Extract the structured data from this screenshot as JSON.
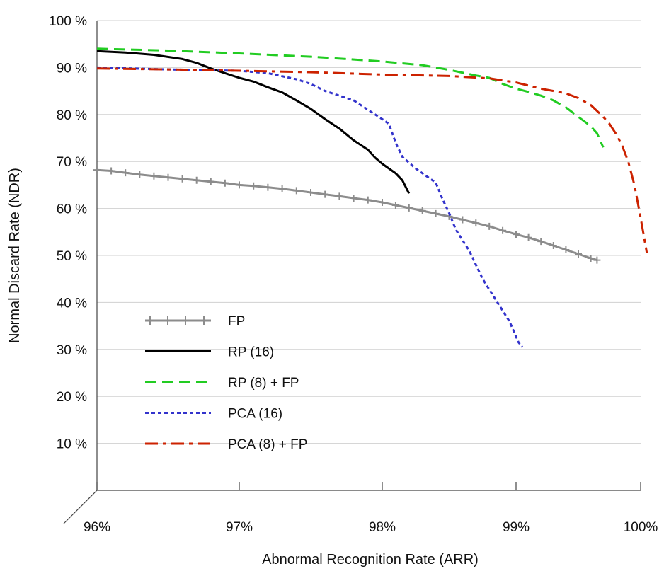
{
  "chart_data": {
    "type": "line",
    "xlabel": "Abnormal Recognition Rate (ARR)",
    "ylabel": "Normal Discard Rate (NDR)",
    "x_ticks": [
      {
        "value": 96,
        "label": "96%"
      },
      {
        "value": 97,
        "label": "97%"
      },
      {
        "value": 98,
        "label": "98%"
      },
      {
        "value": 99,
        "label": "99%"
      },
      {
        "value": 100,
        "label": "100%"
      }
    ],
    "y_ticks": [
      {
        "value": 10,
        "label": "10 %"
      },
      {
        "value": 20,
        "label": "20 %"
      },
      {
        "value": 30,
        "label": "30 %"
      },
      {
        "value": 40,
        "label": "40 %"
      },
      {
        "value": 50,
        "label": "50 %"
      },
      {
        "value": 60,
        "label": "60 %"
      },
      {
        "value": 70,
        "label": "70 %"
      },
      {
        "value": 80,
        "label": "80 %"
      },
      {
        "value": 90,
        "label": "90 %"
      },
      {
        "value": 100,
        "label": "100 %"
      }
    ],
    "xlim": [
      96,
      100
    ],
    "ylim": [
      0,
      100
    ],
    "x_scale_note": "",
    "grid": "horizontal",
    "legend_position": "lower-left",
    "series": [
      {
        "name": "FP",
        "color": "#8c8c8c",
        "style": "solid-plus",
        "points": [
          [
            96.0,
            68.2
          ],
          [
            96.1,
            68.0
          ],
          [
            96.2,
            67.6
          ],
          [
            96.3,
            67.2
          ],
          [
            96.4,
            66.9
          ],
          [
            96.5,
            66.6
          ],
          [
            96.6,
            66.3
          ],
          [
            96.7,
            66.0
          ],
          [
            96.8,
            65.7
          ],
          [
            96.9,
            65.4
          ],
          [
            97.0,
            65.0
          ],
          [
            97.1,
            64.8
          ],
          [
            97.2,
            64.5
          ],
          [
            97.3,
            64.2
          ],
          [
            97.4,
            63.8
          ],
          [
            97.5,
            63.4
          ],
          [
            97.6,
            63.0
          ],
          [
            97.7,
            62.6
          ],
          [
            97.8,
            62.2
          ],
          [
            97.9,
            61.8
          ],
          [
            98.0,
            61.3
          ],
          [
            98.1,
            60.7
          ],
          [
            98.2,
            60.1
          ],
          [
            98.3,
            59.5
          ],
          [
            98.4,
            58.9
          ],
          [
            98.5,
            58.3
          ],
          [
            98.6,
            57.6
          ],
          [
            98.7,
            56.9
          ],
          [
            98.8,
            56.2
          ],
          [
            98.9,
            55.3
          ],
          [
            99.0,
            54.5
          ],
          [
            99.1,
            53.8
          ],
          [
            99.2,
            53.0
          ],
          [
            99.3,
            52.1
          ],
          [
            99.4,
            51.2
          ],
          [
            99.5,
            50.3
          ],
          [
            99.6,
            49.4
          ],
          [
            99.65,
            49.0
          ]
        ]
      },
      {
        "name": "RP (16)",
        "color": "#000000",
        "style": "solid",
        "points": [
          [
            96.0,
            93.5
          ],
          [
            96.2,
            93.2
          ],
          [
            96.4,
            92.7
          ],
          [
            96.6,
            91.8
          ],
          [
            96.7,
            91.0
          ],
          [
            96.8,
            89.8
          ],
          [
            96.9,
            88.8
          ],
          [
            97.0,
            87.8
          ],
          [
            97.1,
            87.0
          ],
          [
            97.2,
            85.8
          ],
          [
            97.3,
            84.7
          ],
          [
            97.4,
            83.0
          ],
          [
            97.5,
            81.2
          ],
          [
            97.6,
            79.0
          ],
          [
            97.7,
            77.0
          ],
          [
            97.8,
            74.5
          ],
          [
            97.9,
            72.5
          ],
          [
            97.95,
            70.8
          ],
          [
            98.0,
            69.5
          ],
          [
            98.1,
            67.5
          ],
          [
            98.15,
            66.0
          ],
          [
            98.2,
            63.2
          ]
        ]
      },
      {
        "name": "RP (8) + FP",
        "color": "#22cc22",
        "style": "dashed",
        "points": [
          [
            96.0,
            94.0
          ],
          [
            96.5,
            93.6
          ],
          [
            97.0,
            93.0
          ],
          [
            97.5,
            92.3
          ],
          [
            98.0,
            91.3
          ],
          [
            98.3,
            90.5
          ],
          [
            98.5,
            89.5
          ],
          [
            98.7,
            88.3
          ],
          [
            98.8,
            87.8
          ],
          [
            98.9,
            86.5
          ],
          [
            99.0,
            85.5
          ],
          [
            99.1,
            84.8
          ],
          [
            99.2,
            84.0
          ],
          [
            99.3,
            83.0
          ],
          [
            99.4,
            81.5
          ],
          [
            99.5,
            79.5
          ],
          [
            99.6,
            77.5
          ],
          [
            99.65,
            76.0
          ],
          [
            99.7,
            73.0
          ]
        ]
      },
      {
        "name": "PCA (16)",
        "color": "#3333cc",
        "style": "dotted",
        "points": [
          [
            96.0,
            90.0
          ],
          [
            96.5,
            89.6
          ],
          [
            97.0,
            89.3
          ],
          [
            97.2,
            88.8
          ],
          [
            97.4,
            87.5
          ],
          [
            97.5,
            86.5
          ],
          [
            97.6,
            85.0
          ],
          [
            97.7,
            84.0
          ],
          [
            97.8,
            83.0
          ],
          [
            97.9,
            81.0
          ],
          [
            98.0,
            79.0
          ],
          [
            98.05,
            78.0
          ],
          [
            98.1,
            74.0
          ],
          [
            98.15,
            71.0
          ],
          [
            98.25,
            68.5
          ],
          [
            98.4,
            65.5
          ],
          [
            98.45,
            62.0
          ],
          [
            98.5,
            59.0
          ],
          [
            98.55,
            55.5
          ],
          [
            98.65,
            51.0
          ],
          [
            98.75,
            45.0
          ],
          [
            98.85,
            40.5
          ],
          [
            98.95,
            36.0
          ],
          [
            99.02,
            31.5
          ],
          [
            99.05,
            30.5
          ]
        ]
      },
      {
        "name": "PCA (8) + FP",
        "color": "#cc2200",
        "style": "dashdot",
        "points": [
          [
            96.0,
            89.8
          ],
          [
            96.5,
            89.6
          ],
          [
            97.0,
            89.3
          ],
          [
            97.5,
            89.0
          ],
          [
            98.0,
            88.5
          ],
          [
            98.5,
            88.2
          ],
          [
            98.8,
            87.7
          ],
          [
            99.0,
            86.8
          ],
          [
            99.2,
            85.5
          ],
          [
            99.4,
            84.5
          ],
          [
            99.5,
            83.5
          ],
          [
            99.6,
            82.0
          ],
          [
            99.7,
            79.5
          ],
          [
            99.75,
            78.0
          ],
          [
            99.8,
            76.0
          ],
          [
            99.85,
            73.5
          ],
          [
            99.9,
            70.0
          ],
          [
            99.95,
            65.0
          ],
          [
            100.0,
            58.0
          ],
          [
            100.05,
            50.5
          ]
        ]
      }
    ]
  }
}
